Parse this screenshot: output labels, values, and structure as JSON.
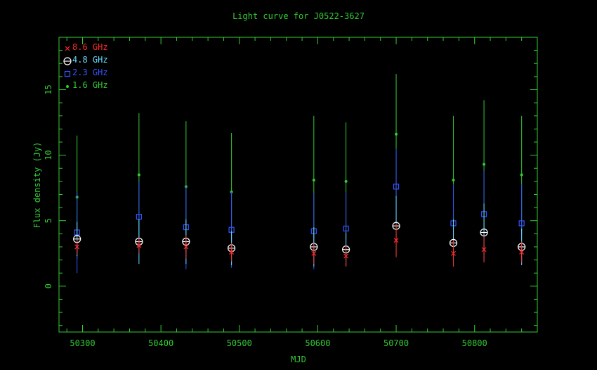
{
  "chart_data": {
    "type": "scatter",
    "title": "Light curve for J0522-3627",
    "xlabel": "MJD",
    "ylabel": "Flux density (Jy)",
    "xlim": [
      50270,
      50880
    ],
    "ylim": [
      -3.5,
      19.0
    ],
    "x_ticks": [
      50300,
      50400,
      50500,
      50600,
      50700,
      50800
    ],
    "y_ticks": [
      0,
      5,
      10,
      15
    ],
    "grid": false,
    "legend_position": "top-left",
    "colors": {
      "axis": "#33cc33",
      "text": "#33cc33",
      "background": "#000000"
    },
    "series": [
      {
        "name": "8.6 GHz",
        "color": "#ff2a2a",
        "marker": "cross",
        "points": [
          {
            "x": 50293,
            "y": 3.0,
            "err": 0.6
          },
          {
            "x": 50372,
            "y": 3.1,
            "err": 0.6
          },
          {
            "x": 50432,
            "y": 3.0,
            "err": 0.9
          },
          {
            "x": 50490,
            "y": 2.6,
            "err": 0.7
          },
          {
            "x": 50595,
            "y": 2.5,
            "err": 0.8
          },
          {
            "x": 50636,
            "y": 2.3,
            "err": 0.8
          },
          {
            "x": 50700,
            "y": 3.5,
            "err": 1.3
          },
          {
            "x": 50773,
            "y": 2.5,
            "err": 1.0
          },
          {
            "x": 50812,
            "y": 2.8,
            "err": 1.0
          },
          {
            "x": 50860,
            "y": 2.6,
            "err": 0.8
          }
        ]
      },
      {
        "name": "4.8 GHz",
        "color": "#66ddff",
        "marker": "circle-plus",
        "points": [
          {
            "x": 50293,
            "y": 3.6,
            "err": 1.3
          },
          {
            "x": 50372,
            "y": 3.4,
            "err": 1.7
          },
          {
            "x": 50432,
            "y": 3.4,
            "err": 1.7
          },
          {
            "x": 50490,
            "y": 2.9,
            "err": 1.3
          },
          {
            "x": 50595,
            "y": 3.0,
            "err": 1.5
          },
          {
            "x": 50636,
            "y": 2.8,
            "err": 1.3
          },
          {
            "x": 50700,
            "y": 4.6,
            "err": 2.3
          },
          {
            "x": 50773,
            "y": 3.3,
            "err": 1.8
          },
          {
            "x": 50812,
            "y": 4.1,
            "err": 2.2
          },
          {
            "x": 50860,
            "y": 3.0,
            "err": 1.4
          }
        ]
      },
      {
        "name": "2.3 GHz",
        "color": "#3355ff",
        "marker": "square",
        "points": [
          {
            "x": 50293,
            "y": 4.1,
            "err": 3.1
          },
          {
            "x": 50372,
            "y": 5.3,
            "err": 2.7
          },
          {
            "x": 50432,
            "y": 4.5,
            "err": 3.2
          },
          {
            "x": 50490,
            "y": 4.3,
            "err": 2.9
          },
          {
            "x": 50595,
            "y": 4.2,
            "err": 2.9
          },
          {
            "x": 50636,
            "y": 4.4,
            "err": 2.8
          },
          {
            "x": 50700,
            "y": 7.6,
            "err": 2.9
          },
          {
            "x": 50773,
            "y": 4.8,
            "err": 3.0
          },
          {
            "x": 50812,
            "y": 5.5,
            "err": 3.3
          },
          {
            "x": 50860,
            "y": 4.8,
            "err": 3.0
          }
        ]
      },
      {
        "name": "1.6 GHz",
        "color": "#33cc33",
        "marker": "dot",
        "points": [
          {
            "x": 50293,
            "y": 6.8,
            "err": 4.7
          },
          {
            "x": 50372,
            "y": 8.5,
            "err": 4.7
          },
          {
            "x": 50432,
            "y": 7.6,
            "err": 5.0
          },
          {
            "x": 50490,
            "y": 7.2,
            "err": 4.5
          },
          {
            "x": 50595,
            "y": 8.1,
            "err": 4.9
          },
          {
            "x": 50636,
            "y": 8.0,
            "err": 4.5
          },
          {
            "x": 50700,
            "y": 11.6,
            "err": 4.6
          },
          {
            "x": 50773,
            "y": 8.1,
            "err": 4.9
          },
          {
            "x": 50812,
            "y": 9.3,
            "err": 4.9
          },
          {
            "x": 50860,
            "y": 8.5,
            "err": 4.5
          }
        ]
      }
    ]
  }
}
